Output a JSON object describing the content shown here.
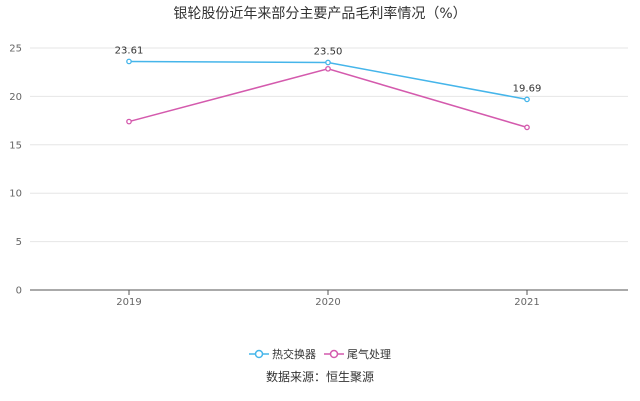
{
  "chart_data": {
    "type": "line",
    "title": "银轮股份近年来部分主要产品毛利率情况（%）",
    "categories": [
      "2019",
      "2020",
      "2021"
    ],
    "series": [
      {
        "name": "热交换器",
        "values": [
          23.61,
          23.5,
          19.69
        ],
        "color": "#45b5ea",
        "data_labels": [
          "23.61",
          "23.50",
          "19.69"
        ]
      },
      {
        "name": "尾气处理",
        "values": [
          17.4,
          22.85,
          16.8
        ],
        "color": "#d45aad",
        "data_labels": [
          "",
          "",
          ""
        ]
      }
    ],
    "ylim": [
      0,
      25
    ],
    "yticks": [
      0,
      5,
      10,
      15,
      20,
      25
    ],
    "xlabel": "",
    "ylabel": "",
    "grid": true,
    "legend_position": "bottom"
  },
  "source": "数据来源：恒生聚源"
}
